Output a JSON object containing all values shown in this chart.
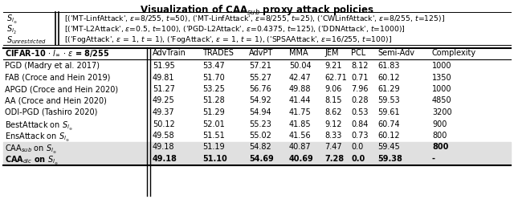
{
  "title": "Visualization of CAA$_{sub}$ proxy attack policies",
  "labels": [
    "$S_{l_\\infty}$",
    "$S_{l_2}$",
    "$S_{unrestricted}$"
  ],
  "policy_contents": [
    "[('MT-LinfAttack', $\\epsilon$=8/255, $t$=50), ('MT-LinfAttack', $\\epsilon$=8/255, $t$=25), ('CWLinfAttack', $\\epsilon$=8/255, $t$=125)]",
    "[('MT-L2Attack', $\\epsilon$=0.5, $t$=100), ('PGD-L2Attack', $\\epsilon$=0.4375, $t$=125), ('DDNAttack', $t$=1000)]",
    "[('FogAttack', $\\epsilon$ = 1, $t$ = 1), ('FogAttack', $\\epsilon$ = 1, $t$ = 1), ('SPSAAttack', $\\epsilon$=16/255, $t$=100)]"
  ],
  "header": [
    "CIFAR-10 $\\cdot$ $l_\\infty$ $\\cdot$ $\\epsilon$ = 8/255",
    "AdvTrain",
    "TRADES",
    "AdvPT",
    "MMA",
    "JEM",
    "PCL",
    "Semi-Adv",
    "Complexity"
  ],
  "row_names": [
    "PGD (Madry et al. 2017)",
    "FAB (Croce and Hein 2019)",
    "APGD (Croce and Hein 2020)",
    "AA (Croce and Hein 2020)",
    "ODI-PGD (Tashiro 2020)",
    "BestAttack on $S_{l_\\infty}$",
    "EnsAttack on $S_{l_\\infty}$",
    "CAA$_{sub}$ on $S_{l_\\infty}$",
    "CAA$_{dic}$ on $S_{l_\\infty}$"
  ],
  "row_data": [
    [
      "51.95",
      "53.47",
      "57.21",
      "50.04",
      "9.21",
      "8.12",
      "61.83",
      "1000"
    ],
    [
      "49.81",
      "51.70",
      "55.27",
      "42.47",
      "62.71",
      "0.71",
      "60.12",
      "1350"
    ],
    [
      "51.27",
      "53.25",
      "56.76",
      "49.88",
      "9.06",
      "7.96",
      "61.29",
      "1000"
    ],
    [
      "49.25",
      "51.28",
      "54.92",
      "41.44",
      "8.15",
      "0.28",
      "59.53",
      "4850"
    ],
    [
      "49.37",
      "51.29",
      "54.94",
      "41.75",
      "8.62",
      "0.53",
      "59.61",
      "3200"
    ],
    [
      "50.12",
      "52.01",
      "55.23",
      "41.85",
      "9.12",
      "0.84",
      "60.74",
      "900"
    ],
    [
      "49.58",
      "51.51",
      "55.02",
      "41.56",
      "8.33",
      "0.73",
      "60.12",
      "800"
    ],
    [
      "49.18",
      "51.19",
      "54.82",
      "40.87",
      "7.47",
      "0.0",
      "59.45",
      "800"
    ],
    [
      "49.18",
      "51.10",
      "54.69",
      "40.69",
      "7.28",
      "0.0",
      "59.38",
      "-"
    ]
  ],
  "row_bold": [
    false,
    false,
    false,
    false,
    false,
    false,
    false,
    false,
    true
  ],
  "caa_sub_bold_cols": [
    7
  ],
  "highlight_rows": [
    7,
    8
  ],
  "highlight_color": "#e0e0e0",
  "bg_color": "#ffffff",
  "font_size": 7.0,
  "title_font_size": 8.5
}
